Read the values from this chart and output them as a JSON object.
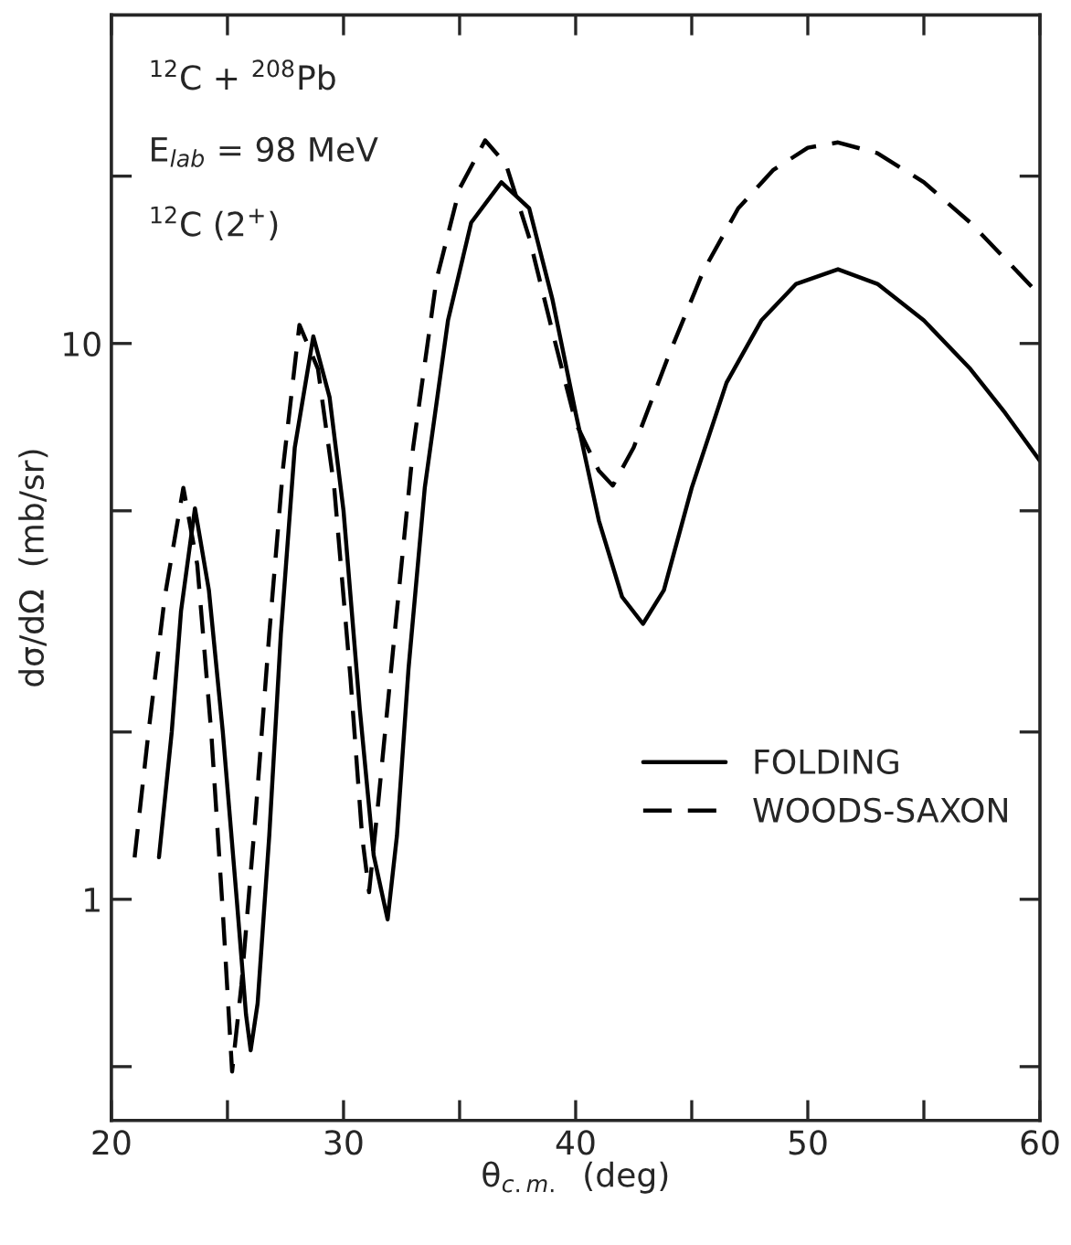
{
  "chart_data": {
    "type": "line",
    "xlabel": "θ$_{c.m.}$  (deg)",
    "ylabel": "dσ/dΩ  (mb/sr)",
    "annotations": [
      "$^{12}$C + $^{208}$Pb",
      "E$_{lab}$ = 98 MeV",
      "$^{12}$C (2$^{+}$)"
    ],
    "log": "y",
    "grid": false,
    "legend": "right",
    "marker": "none",
    "xlim": [
      20,
      60
    ],
    "xticks": [
      20,
      {
        "value": 25,
        "label": null
      },
      30,
      {
        "value": 35,
        "label": null
      },
      40,
      {
        "value": 45,
        "label": null
      },
      50,
      {
        "value": 55,
        "label": null
      },
      60
    ],
    "ylim": [
      0.4,
      39
    ],
    "yticks": [
      {
        "value": 0.5,
        "label": null
      },
      1,
      {
        "value": 2,
        "label": null
      },
      {
        "value": 5,
        "label": null
      },
      10,
      {
        "value": 20,
        "label": null
      }
    ],
    "series": [
      {
        "name": "FOLDING",
        "color": "#000000",
        "line_style": "solid",
        "x": [
          22.05,
          22.6,
          23.0,
          23.6,
          24.2,
          24.8,
          25.4,
          25.8,
          26.0,
          26.3,
          26.8,
          27.3,
          27.9,
          28.7,
          29.4,
          30.0,
          30.7,
          31.3,
          31.9,
          32.3,
          32.8,
          33.5,
          34.5,
          35.5,
          36.8,
          38.0,
          39.0,
          40.0,
          41.0,
          42.0,
          42.9,
          43.8,
          45.0,
          46.5,
          48.0,
          49.5,
          51.3,
          53.0,
          55.0,
          57.0,
          58.5,
          60
        ],
        "values": [
          1.19,
          2.0,
          3.3,
          5.05,
          3.6,
          2.0,
          1.0,
          0.62,
          0.535,
          0.65,
          1.3,
          3.0,
          6.5,
          10.3,
          8.0,
          5.0,
          2.2,
          1.2,
          0.92,
          1.3,
          2.6,
          5.5,
          11,
          16.5,
          19.5,
          17.5,
          12,
          7.5,
          4.8,
          3.5,
          3.13,
          3.6,
          5.5,
          8.5,
          11,
          12.8,
          13.6,
          12.8,
          11,
          9,
          7.5,
          6.15
        ]
      },
      {
        "name": "WOODS-SAXON",
        "color": "#000000",
        "line_style": "dashed",
        "x": [
          21.0,
          21.6,
          22.3,
          23.1,
          23.7,
          24.3,
          24.8,
          25.2,
          25.6,
          26.2,
          26.8,
          27.4,
          28.1,
          28.9,
          29.6,
          30.3,
          30.8,
          31.1,
          31.5,
          32.2,
          33.0,
          34.0,
          35.0,
          36.1,
          37.0,
          38.0,
          39.0,
          40.0,
          41.0,
          41.6,
          42.5,
          44.0,
          45.5,
          47.0,
          48.5,
          50.0,
          51.3,
          53.0,
          55.0,
          57.0,
          58.5,
          60
        ],
        "values": [
          1.19,
          2.0,
          3.5,
          5.5,
          4.0,
          2.0,
          0.95,
          0.49,
          0.7,
          1.4,
          3.0,
          6.0,
          10.8,
          9.0,
          5.5,
          2.5,
          1.3,
          1.03,
          1.5,
          3.0,
          6.5,
          13,
          19,
          23.2,
          21,
          15.5,
          10.5,
          7.2,
          5.9,
          5.55,
          6.5,
          9.5,
          13.5,
          17.5,
          20.5,
          22.5,
          23,
          22,
          19.5,
          16.5,
          14.2,
          12.2
        ]
      }
    ]
  }
}
